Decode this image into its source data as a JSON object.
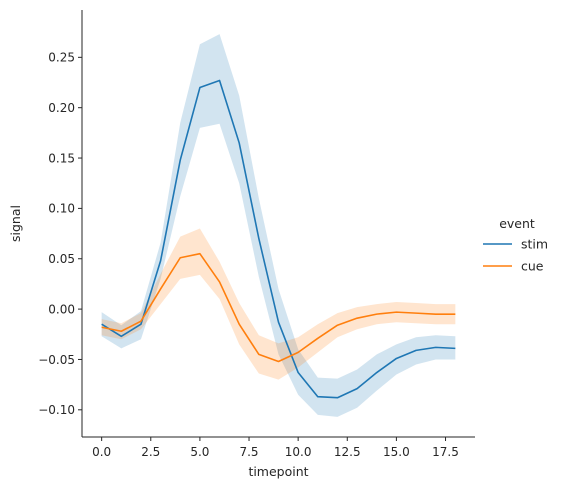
{
  "chart_data": {
    "type": "line",
    "xlabel": "timepoint",
    "ylabel": "signal",
    "xlim": [
      -1,
      19
    ],
    "ylim": [
      -0.127,
      0.297
    ],
    "x_ticks": [
      0,
      2.5,
      5,
      7.5,
      10,
      12.5,
      15,
      17.5
    ],
    "x_tick_labels": [
      "0.0",
      "2.5",
      "5.0",
      "7.5",
      "10.0",
      "12.5",
      "15.0",
      "17.5"
    ],
    "y_ticks": [
      -0.1,
      -0.05,
      0.0,
      0.05,
      0.1,
      0.15,
      0.2,
      0.25
    ],
    "y_tick_labels": [
      "−0.10",
      "−0.05",
      "0.00",
      "0.05",
      "0.10",
      "0.15",
      "0.20",
      "0.25"
    ],
    "grid": false,
    "legend": {
      "title": "event",
      "placement": "right"
    },
    "x": [
      0,
      1,
      2,
      3,
      4,
      5,
      6,
      7,
      8,
      9,
      10,
      11,
      12,
      13,
      14,
      15,
      16,
      17,
      18
    ],
    "series": [
      {
        "name": "stim",
        "color": "#1f77b4",
        "values": [
          -0.015,
          -0.027,
          -0.015,
          0.048,
          0.148,
          0.22,
          0.227,
          0.165,
          0.07,
          -0.013,
          -0.063,
          -0.087,
          -0.088,
          -0.079,
          -0.063,
          -0.049,
          -0.041,
          -0.038,
          -0.039
        ],
        "ci_lower": [
          -0.027,
          -0.039,
          -0.03,
          0.03,
          0.112,
          0.18,
          0.184,
          0.125,
          0.032,
          -0.045,
          -0.085,
          -0.105,
          -0.107,
          -0.098,
          -0.081,
          -0.065,
          -0.055,
          -0.05,
          -0.05
        ],
        "ci_upper": [
          -0.003,
          -0.016,
          -0.002,
          0.066,
          0.185,
          0.263,
          0.273,
          0.212,
          0.11,
          0.02,
          -0.04,
          -0.068,
          -0.069,
          -0.06,
          -0.045,
          -0.035,
          -0.028,
          -0.026,
          -0.027
        ]
      },
      {
        "name": "cue",
        "color": "#ff7f0e",
        "values": [
          -0.018,
          -0.022,
          -0.012,
          0.02,
          0.051,
          0.055,
          0.027,
          -0.015,
          -0.045,
          -0.052,
          -0.043,
          -0.029,
          -0.016,
          -0.009,
          -0.005,
          -0.003,
          -0.004,
          -0.005,
          -0.005
        ],
        "ci_lower": [
          -0.026,
          -0.03,
          -0.02,
          0.005,
          0.03,
          0.034,
          0.01,
          -0.035,
          -0.064,
          -0.07,
          -0.058,
          -0.043,
          -0.028,
          -0.02,
          -0.015,
          -0.013,
          -0.014,
          -0.015,
          -0.015
        ],
        "ci_upper": [
          -0.01,
          -0.014,
          -0.004,
          0.035,
          0.072,
          0.08,
          0.047,
          0.006,
          -0.026,
          -0.034,
          -0.028,
          -0.015,
          -0.004,
          0.002,
          0.005,
          0.007,
          0.006,
          0.005,
          0.005
        ]
      }
    ]
  }
}
